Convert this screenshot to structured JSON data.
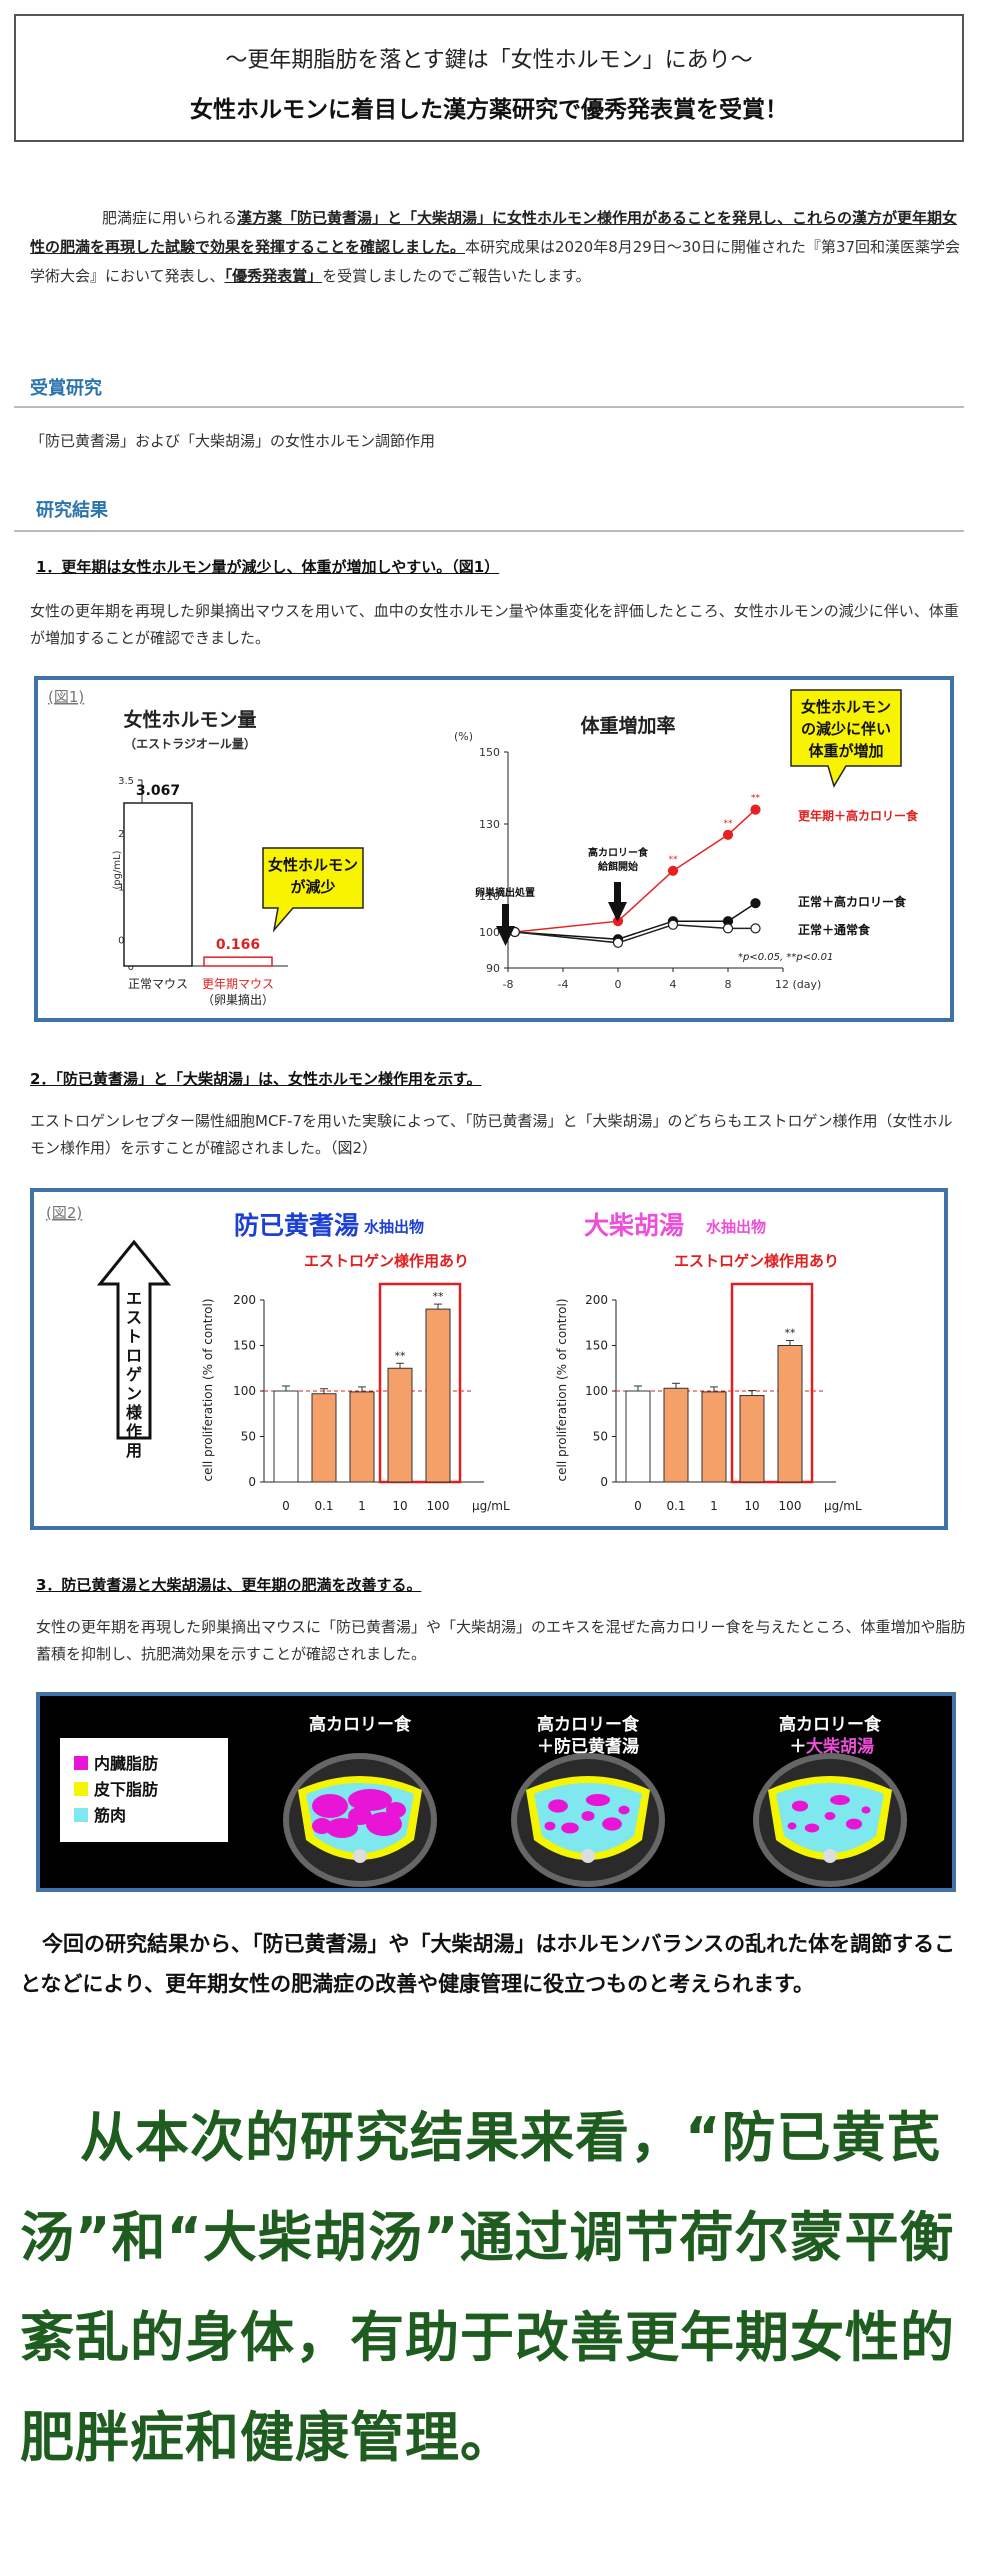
{
  "title": {
    "subtitle": "〜更年期脂肪を落とす鍵は「女性ホルモン」にあり〜",
    "main": "女性ホルモンに着目した漢方薬研究で優秀発表賞を受賞！"
  },
  "intro": {
    "part1": "肥満症に用いられる",
    "bold1": "漢方薬「防已黄耆湯」と「大柴胡湯」に女性ホルモン様作用があることを発見し、これらの漢方が更年期女性の肥満を再現した試験で効果を発揮することを確認しました。",
    "part2": "本研究成果は2020年8月29日〜30日に開催された『第37回和漢医薬学会学術大会』において発表し、",
    "bold2": "「優秀発表賞」",
    "part3": "を受賞しましたのでご報告いたします。"
  },
  "award": {
    "heading": "受賞研究",
    "text": "「防已黄耆湯」および「大柴胡湯」の女性ホルモン調節作用"
  },
  "results": {
    "heading": "研究結果",
    "s1_title": "1．更年期は女性ホルモン量が減少し、体重が増加しやすい。（図1）",
    "s1_text": "女性の更年期を再現した卵巣摘出マウスを用いて、血中の女性ホルモン量や体重変化を評価したところ、女性ホルモンの減少に伴い、体重が増加することが確認できました。",
    "s2_title": "2．「防已黄耆湯」と「大柴胡湯」は、女性ホルモン様作用を示す。",
    "s2_text": "エストロゲンレセプター陽性細胞MCF-7を用いた実験によって、「防已黄耆湯」と「大柴胡湯」のどちらもエストロゲン様作用（女性ホルモン様作用）を示すことが確認されました。（図2）",
    "s3_title": "3．防已黄耆湯と大柴胡湯は、更年期の肥満を改善する。",
    "s3_text": "女性の更年期を再現した卵巣摘出マウスに「防已黄耆湯」や「大柴胡湯」のエキスを混ぜた高カロリー食を与えたところ、体重増加や脂肪蓄積を抑制し、抗肥満効果を示すことが確認されました。"
  },
  "fig1": {
    "tag": "(図1)",
    "bar": {
      "title": "女性ホルモン量",
      "subtitle": "（エストラジオール量）",
      "ylabel": "(pg/mL)",
      "yticks": [
        "0",
        "0.5",
        "1",
        "1.5",
        "2",
        "2.5",
        "3",
        "3.5"
      ],
      "callout": [
        "女性ホルモン",
        "が減少"
      ],
      "cat1": "正常マウス",
      "cat2a": "更年期マウス",
      "cat2b": "（卵巣摘出）"
    },
    "line": {
      "title": "体重増加率",
      "yunit": "(%)",
      "yticks": [
        "90",
        "100",
        "110",
        "130",
        "150"
      ],
      "xticks": [
        "-8",
        "-4",
        "0",
        "4",
        "8",
        "12 (day)"
      ],
      "arrow1": "卵巣摘出処置",
      "arrow2a": "高カロリー食",
      "arrow2b": "給餌開始",
      "callout": [
        "女性ホルモン",
        "の減少に伴い",
        "体重が増加"
      ],
      "series_labels": [
        "更年期＋高カロリー食",
        "正常＋高カロリー食",
        "正常＋通常食"
      ],
      "note": "*p<0.05, **p<0.01",
      "sig_star": "**"
    }
  },
  "fig2": {
    "tag": "(図2)",
    "panel1_name": "防已黄耆湯",
    "panel2_name": "大柴胡湯",
    "extract": "水抽出物",
    "effect": "エストロゲン様作用あり",
    "arrow_label": "エストロゲン様作用",
    "ylabel": "cell proliferation (% of control)",
    "yticks": [
      "0",
      "50",
      "100",
      "150",
      "200"
    ],
    "xticks": [
      "0",
      "0.1",
      "1",
      "10",
      "100"
    ],
    "xunit": "μg/mL",
    "sig": "**"
  },
  "fig3": {
    "legend": [
      "内臓脂肪",
      "皮下脂肪",
      "筋肉"
    ],
    "panel1": "高カロリー食",
    "panel2a": "高カロリー食",
    "panel2b": "＋防已黄耆湯",
    "panel3a": "高カロリー食",
    "panel3b": "＋",
    "panel3c": "大柴胡湯",
    "legend_colors": [
      "#e815d6",
      "#f5f500",
      "#7fe8ee"
    ]
  },
  "conclusion": {
    "p1": "今回の研究結果から、「防已黄耆湯」や「大柴胡湯」はホルモンバランスの乱れた体を調節することなどにより、",
    "p2": "更年期女性の肥満症の改善や健康管理に役立つ",
    "p3": "ものと考えられます。"
  },
  "zh_caption": "从本次的研究结果来看，“防已黄芪汤”和“大柴胡汤”通过调节荷尔蒙平衡紊乱的身体，有助于改善更年期女性的肥胖症和健康管理。",
  "chart_data": [
    {
      "type": "bar",
      "title": "女性ホルモン量",
      "subtitle": "（エストラジオール量）",
      "ylabel": "(pg/mL)",
      "ylim": [
        0,
        3.5
      ],
      "categories": [
        "正常マウス",
        "更年期マウス（卵巣摘出）"
      ],
      "values": [
        3.067,
        0.166
      ],
      "value_labels": [
        "3.067",
        "0.166"
      ]
    },
    {
      "type": "line",
      "title": "体重増加率",
      "ylabel": "(%)",
      "ylim": [
        90,
        150
      ],
      "xlim": [
        -8,
        12
      ],
      "x": [
        -7.5,
        0,
        4,
        8,
        10
      ],
      "series": [
        {
          "name": "更年期＋高カロリー食",
          "values": [
            100,
            103,
            117,
            127,
            134
          ],
          "color": "#e82020"
        },
        {
          "name": "正常＋高カロリー食",
          "values": [
            100,
            98,
            103,
            103,
            108
          ],
          "color": "#111111"
        },
        {
          "name": "正常＋通常食",
          "values": [
            100,
            97,
            102,
            101,
            101
          ],
          "color": "#ffffff"
        }
      ]
    },
    {
      "type": "bar",
      "title": "防已黄耆湯",
      "ylabel": "cell proliferation (% of control)",
      "ylim": [
        0,
        200
      ],
      "categories": [
        "0",
        "0.1",
        "1",
        "10",
        "100"
      ],
      "values": [
        100,
        97,
        99,
        125,
        190
      ]
    },
    {
      "type": "bar",
      "title": "大柴胡湯",
      "ylabel": "cell proliferation (% of control)",
      "ylim": [
        0,
        200
      ],
      "categories": [
        "0",
        "0.1",
        "1",
        "10",
        "100"
      ],
      "values": [
        100,
        103,
        99,
        95,
        150
      ]
    }
  ]
}
